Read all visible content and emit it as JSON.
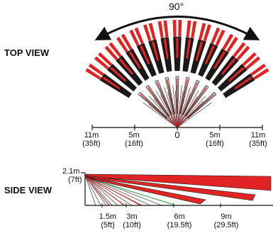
{
  "labels": {
    "top_view": "TOP VIEW",
    "side_view": "SIDE VIEW",
    "angle": "90°"
  },
  "top_ticks": [
    {
      "m": "11m",
      "ft": "(35ft)"
    },
    {
      "m": "5m",
      "ft": "(16ft)"
    },
    {
      "m": "0",
      "ft": ""
    },
    {
      "m": "5m",
      "ft": "(16ft)"
    },
    {
      "m": "11m",
      "ft": "(35ft)"
    }
  ],
  "side_height": {
    "m": "2.1m",
    "ft": "(7ft)"
  },
  "side_ticks": [
    {
      "m": "1.5m",
      "ft": "(5ft)"
    },
    {
      "m": "3m",
      "ft": "(10ft)"
    },
    {
      "m": "6m",
      "ft": "(19.5ft)"
    },
    {
      "m": "9m",
      "ft": "(29.5ft)"
    }
  ],
  "colors": {
    "red": "#e02424",
    "black": "#1a1a1a",
    "green": "#2e9a3c"
  }
}
